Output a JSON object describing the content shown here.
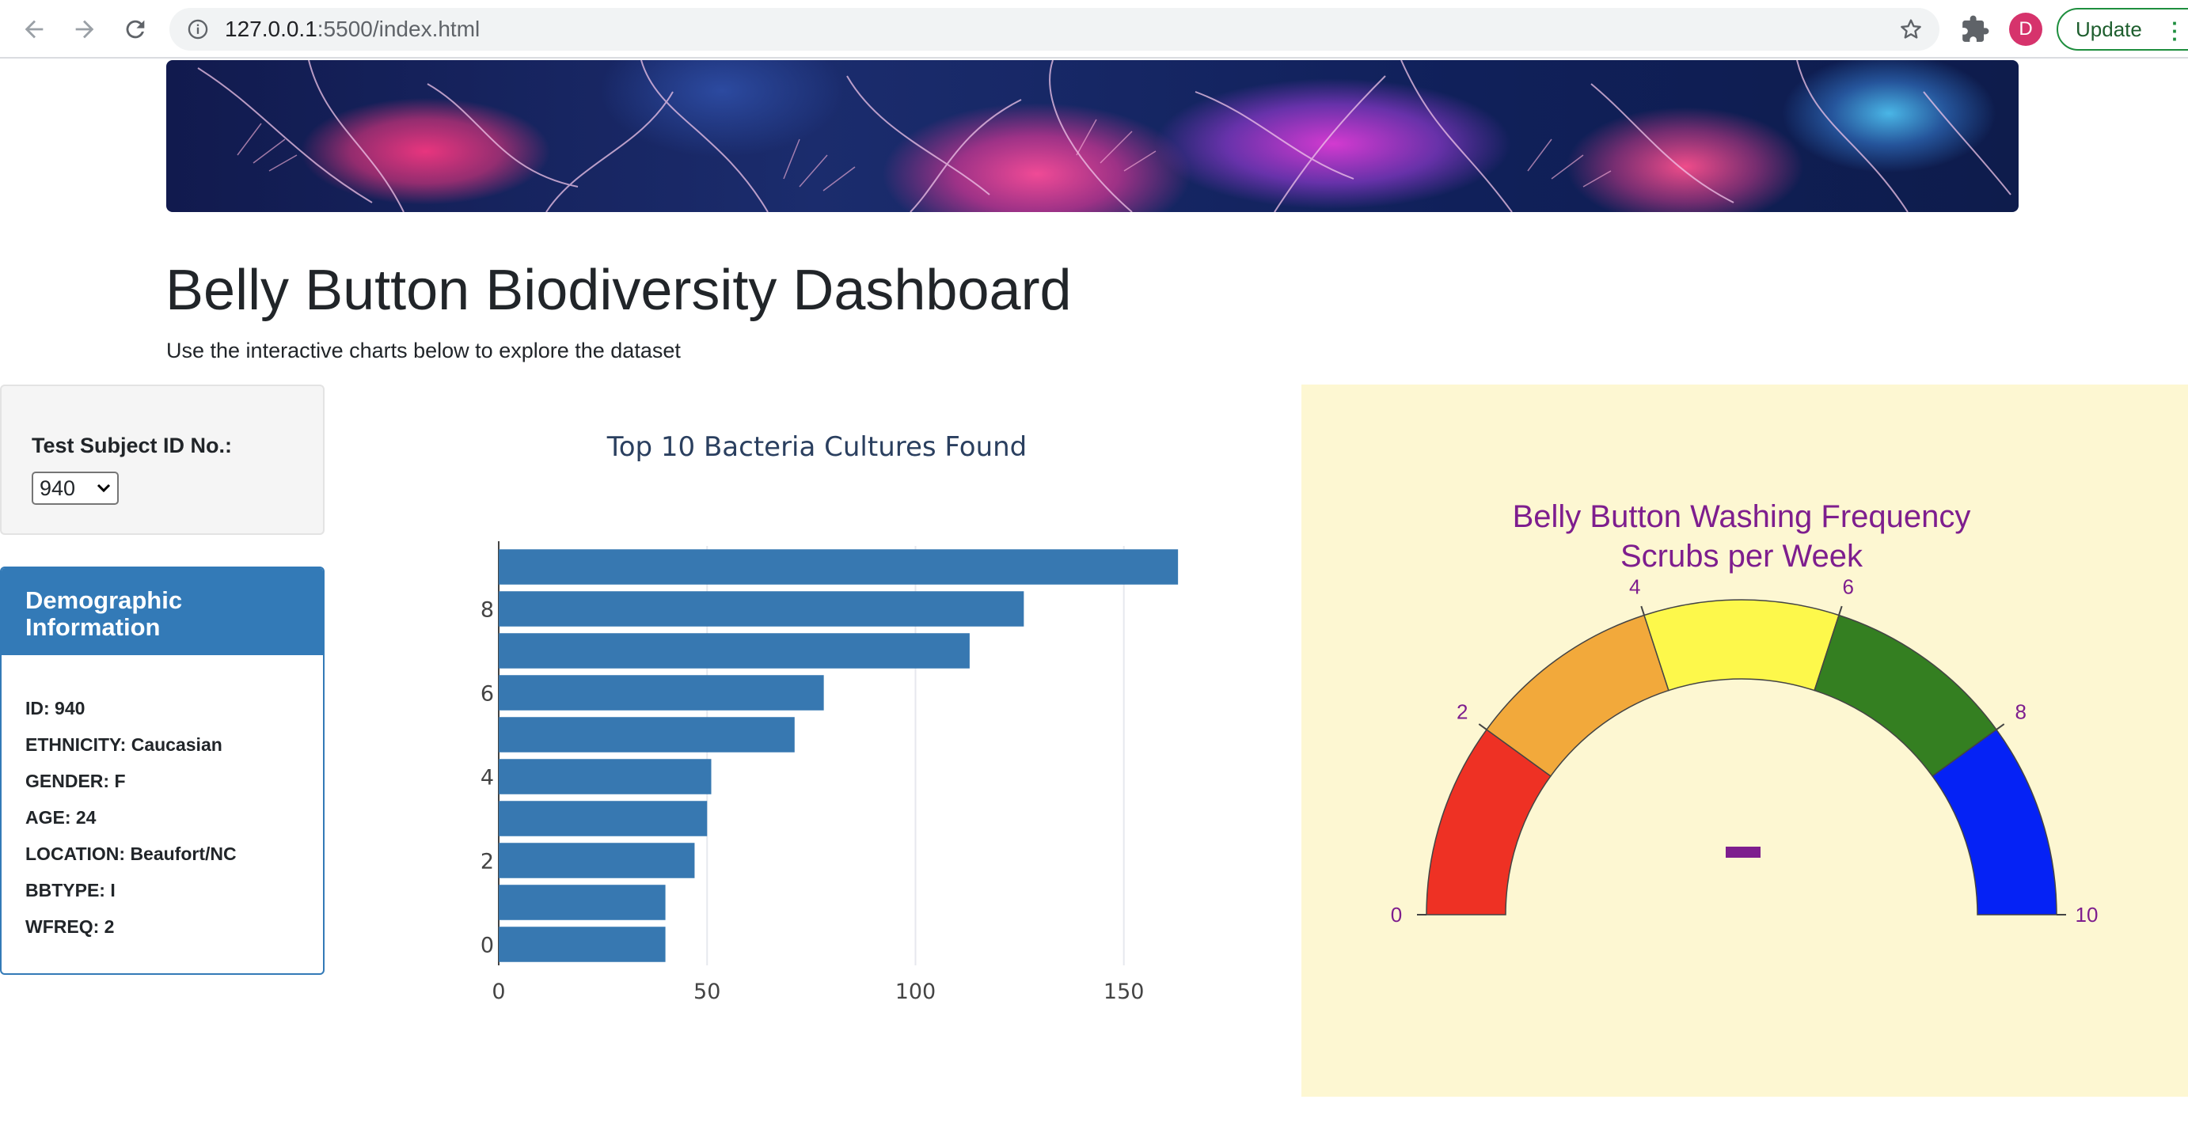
{
  "browser": {
    "url_host": "127.0.0.1",
    "url_path": ":5500/index.html",
    "avatar_letter": "D",
    "update_label": "Update"
  },
  "header": {
    "title": "Belly Button Biodiversity Dashboard",
    "subtitle": "Use the interactive charts below to explore the dataset"
  },
  "selector": {
    "label": "Test Subject ID No.:",
    "selected": "940"
  },
  "demographics": {
    "heading_line1": "Demographic",
    "heading_line2": "Information",
    "rows": [
      "ID: 940",
      "ETHNICITY: Caucasian",
      "GENDER: F",
      "AGE: 24",
      "LOCATION: Beaufort/NC",
      "BBTYPE: I",
      "WFREQ: 2"
    ]
  },
  "chart_data": [
    {
      "type": "bar",
      "orientation": "horizontal",
      "title": "Top 10 Bacteria Cultures Found",
      "y": [
        0,
        1,
        2,
        3,
        4,
        5,
        6,
        7,
        8,
        9
      ],
      "values": [
        40,
        40,
        47,
        50,
        51,
        71,
        78,
        113,
        126,
        163
      ],
      "xlim": [
        0,
        170
      ],
      "xticks": [
        0,
        50,
        100,
        150
      ],
      "yticks": [
        0,
        2,
        4,
        6,
        8
      ],
      "grid": "vertical",
      "color": "#3778b1"
    },
    {
      "type": "gauge",
      "title_line1": "Belly Button Washing Frequency",
      "title_line2": "Scrubs per Week",
      "range": [
        0,
        10
      ],
      "ticks": [
        0,
        2,
        4,
        6,
        8,
        10
      ],
      "value": 2,
      "bands": [
        {
          "from": 0,
          "to": 2,
          "color": "#ee3124"
        },
        {
          "from": 2,
          "to": 4,
          "color": "#f2a93b"
        },
        {
          "from": 4,
          "to": 6,
          "color": "#fdf84b"
        },
        {
          "from": 6,
          "to": 8,
          "color": "#347f21"
        },
        {
          "from": 8,
          "to": 10,
          "color": "#0522f5"
        }
      ],
      "value_color": "#7e1e8e",
      "background": "#fdf7d2"
    }
  ]
}
